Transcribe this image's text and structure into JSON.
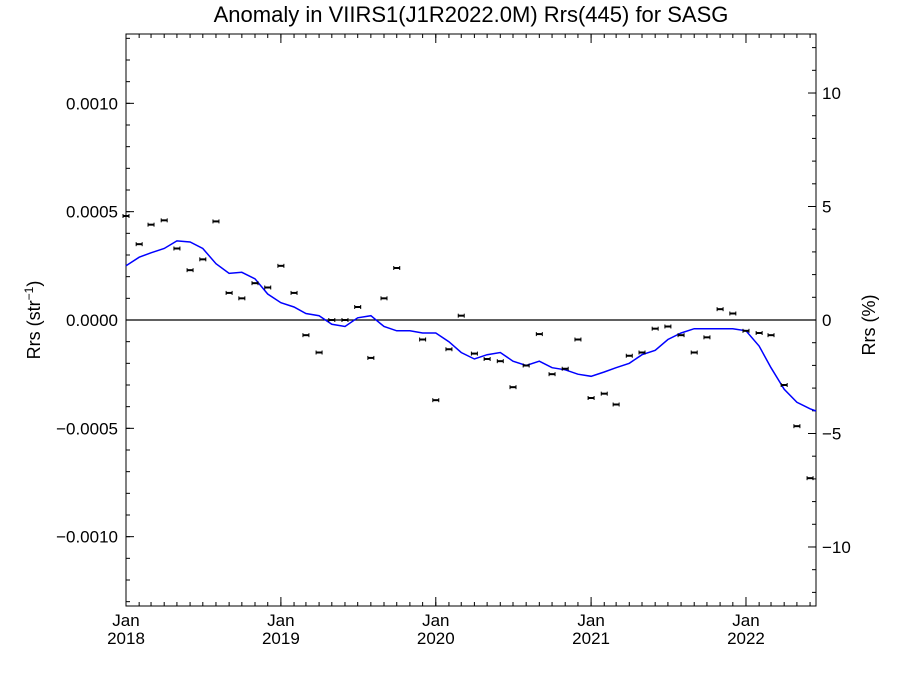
{
  "chart_data": {
    "type": "scatter",
    "title": "Anomaly in VIIRS1(J1R2022.0M) Rrs(445) for SASG",
    "ylabel": "Rrs (str",
    "ylabel_sup": "−1",
    "ylabel_close": ")",
    "y2label": "Rrs (%)",
    "xlim": [
      "2018-01-01",
      "2022-06-15"
    ],
    "ylim": [
      -0.00132,
      0.00132
    ],
    "y2lim": [
      -12.6,
      12.6
    ],
    "grid": false,
    "yticks": [
      {
        "value": 0.001,
        "label": "0.0010"
      },
      {
        "value": 0.0005,
        "label": "0.0005"
      },
      {
        "value": 0.0,
        "label": "0.0000"
      },
      {
        "value": -0.0005,
        "label": "−0.0005"
      },
      {
        "value": -0.001,
        "label": "−0.0010"
      }
    ],
    "y2ticks": [
      {
        "value": 10,
        "label": "10"
      },
      {
        "value": 5,
        "label": "5"
      },
      {
        "value": 0,
        "label": "0"
      },
      {
        "value": -5,
        "label": "−5"
      },
      {
        "value": -10,
        "label": "−10"
      }
    ],
    "xticks": [
      {
        "date": "2018-01-01",
        "month": "Jan",
        "year": "2018"
      },
      {
        "date": "2019-01-01",
        "month": "Jan",
        "year": "2019"
      },
      {
        "date": "2020-01-01",
        "month": "Jan",
        "year": "2020"
      },
      {
        "date": "2021-01-01",
        "month": "Jan",
        "year": "2021"
      },
      {
        "date": "2022-01-01",
        "month": "Jan",
        "year": "2022"
      }
    ],
    "zero_line": 0.0,
    "series": [
      {
        "kind": "monthly_anomaly_points",
        "color": "#000000",
        "x": [
          "2018-01-01",
          "2018-02-01",
          "2018-03-01",
          "2018-04-01",
          "2018-05-01",
          "2018-06-01",
          "2018-07-01",
          "2018-08-01",
          "2018-09-01",
          "2018-10-01",
          "2018-11-01",
          "2018-12-01",
          "2019-01-01",
          "2019-02-01",
          "2019-03-01",
          "2019-04-01",
          "2019-05-01",
          "2019-06-01",
          "2019-07-01",
          "2019-08-01",
          "2019-09-01",
          "2019-10-01",
          "2019-12-01",
          "2020-01-01",
          "2020-02-01",
          "2020-03-01",
          "2020-04-01",
          "2020-05-01",
          "2020-06-01",
          "2020-07-01",
          "2020-08-01",
          "2020-09-01",
          "2020-10-01",
          "2020-11-01",
          "2020-12-01",
          "2021-01-01",
          "2021-02-01",
          "2021-03-01",
          "2021-04-01",
          "2021-05-01",
          "2021-06-01",
          "2021-07-01",
          "2021-08-01",
          "2021-09-01",
          "2021-10-01",
          "2021-11-01",
          "2021-12-01",
          "2022-01-01",
          "2022-02-01",
          "2022-03-01",
          "2022-04-01",
          "2022-05-01",
          "2022-06-01"
        ],
        "y": [
          0.00048,
          0.00035,
          0.00044,
          0.00046,
          0.00033,
          0.00023,
          0.00028,
          0.000455,
          0.000125,
          0.0001,
          0.00017,
          0.00015,
          0.00025,
          0.000125,
          -7e-05,
          -0.00015,
          0.0,
          0.0,
          6e-05,
          -0.000175,
          0.0001,
          0.00024,
          -9e-05,
          -0.00037,
          -0.000135,
          2e-05,
          -0.000155,
          -0.00018,
          -0.00019,
          -0.00031,
          -0.00021,
          -6.5e-05,
          -0.00025,
          -0.000225,
          -9e-05,
          -0.00036,
          -0.00034,
          -0.00039,
          -0.000165,
          -0.00015,
          -4e-05,
          -3e-05,
          -7e-05,
          -0.00015,
          -8e-05,
          5e-05,
          3e-05,
          -5e-05,
          -6e-05,
          -7e-05,
          -0.0003,
          -0.00049,
          -0.00073
        ]
      },
      {
        "kind": "running_mean",
        "color": "#0000ff",
        "x": [
          "2018-01-01",
          "2018-02-01",
          "2018-03-01",
          "2018-04-01",
          "2018-05-01",
          "2018-06-01",
          "2018-07-01",
          "2018-08-01",
          "2018-09-01",
          "2018-10-01",
          "2018-11-01",
          "2018-12-01",
          "2019-01-01",
          "2019-02-01",
          "2019-03-01",
          "2019-04-01",
          "2019-05-01",
          "2019-06-01",
          "2019-07-01",
          "2019-08-01",
          "2019-09-01",
          "2019-10-01",
          "2019-11-01",
          "2019-12-01",
          "2020-01-01",
          "2020-02-01",
          "2020-03-01",
          "2020-04-01",
          "2020-05-01",
          "2020-06-01",
          "2020-07-01",
          "2020-08-01",
          "2020-09-01",
          "2020-10-01",
          "2020-11-01",
          "2020-12-01",
          "2021-01-01",
          "2021-02-01",
          "2021-03-01",
          "2021-04-01",
          "2021-05-01",
          "2021-06-01",
          "2021-07-01",
          "2021-08-01",
          "2021-09-01",
          "2021-10-01",
          "2021-11-01",
          "2021-12-01",
          "2022-01-01",
          "2022-02-01",
          "2022-03-01",
          "2022-04-01",
          "2022-05-01",
          "2022-06-01",
          "2022-06-15"
        ],
        "y": [
          0.00025,
          0.00029,
          0.00031,
          0.00033,
          0.000365,
          0.00036,
          0.00033,
          0.00026,
          0.000215,
          0.00022,
          0.00019,
          0.00012,
          8e-05,
          6e-05,
          3e-05,
          2e-05,
          -2e-05,
          -3e-05,
          1e-05,
          2e-05,
          -3e-05,
          -5e-05,
          -5e-05,
          -6e-05,
          -6e-05,
          -0.0001,
          -0.00015,
          -0.00018,
          -0.00016,
          -0.00015,
          -0.00019,
          -0.00021,
          -0.00019,
          -0.00022,
          -0.00023,
          -0.00025,
          -0.00026,
          -0.00024,
          -0.00022,
          -0.0002,
          -0.00016,
          -0.00014,
          -9e-05,
          -6e-05,
          -4e-05,
          -4e-05,
          -4e-05,
          -4e-05,
          -5e-05,
          -0.00012,
          -0.00022,
          -0.00032,
          -0.00038,
          -0.00041,
          -0.00042
        ]
      }
    ]
  }
}
